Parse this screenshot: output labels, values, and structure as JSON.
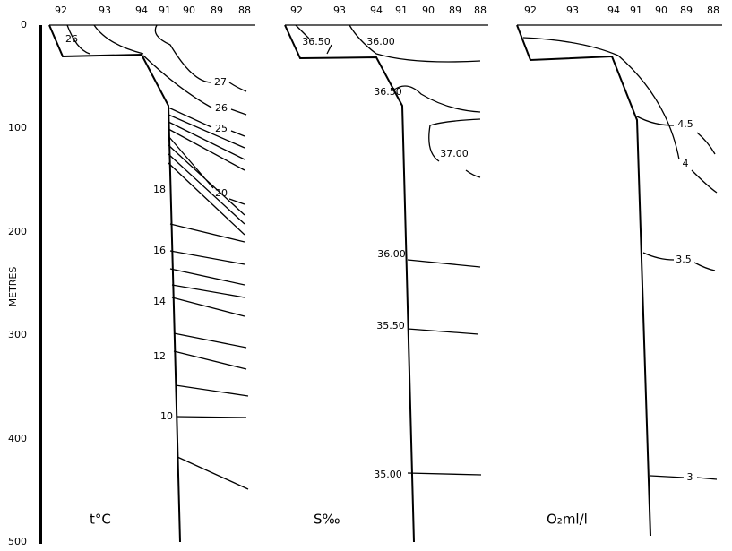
{
  "axis": {
    "label": "METRES",
    "ticks": [
      "0",
      "100",
      "200",
      "300",
      "400",
      "500"
    ]
  },
  "panels": [
    {
      "title": "t°C",
      "stations": [
        "92",
        "93",
        "94",
        "91",
        "90",
        "89",
        "88"
      ],
      "contours": [
        "26",
        "27",
        "26",
        "25",
        "20",
        "18",
        "16",
        "14",
        "12",
        "10"
      ]
    },
    {
      "title": "S‰",
      "stations": [
        "92",
        "93",
        "94",
        "91",
        "90",
        "89",
        "88"
      ],
      "contours": [
        "36.50",
        "36.00",
        "36.50",
        "37.00",
        "36.00",
        "35.50",
        "35.00"
      ]
    },
    {
      "title": "O₂ml/l",
      "stations": [
        "92",
        "93",
        "94",
        "91",
        "90",
        "89",
        "88"
      ],
      "contours": [
        "4.5",
        "4",
        "3.5",
        "3"
      ]
    }
  ]
}
